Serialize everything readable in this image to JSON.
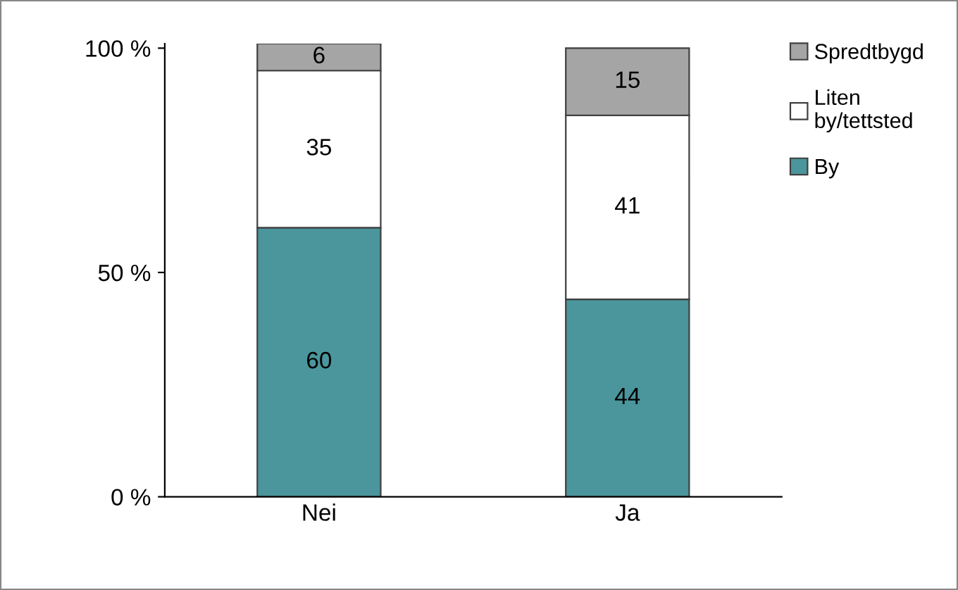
{
  "chart_data": {
    "type": "bar",
    "stacked": true,
    "categories": [
      "Nei",
      "Ja"
    ],
    "series": [
      {
        "name": "By",
        "color": "#4a969c",
        "values": [
          60,
          44
        ]
      },
      {
        "name": "Liten\nby/tettsted",
        "color": "#ffffff",
        "values": [
          35,
          41
        ]
      },
      {
        "name": "Spredtbygd",
        "color": "#a5a5a5",
        "values": [
          6,
          15
        ]
      }
    ],
    "data_labels": true,
    "ylim": [
      0,
      101
    ],
    "yticks": [
      {
        "value": 0,
        "label": "0 %"
      },
      {
        "value": 50,
        "label": "50 %"
      },
      {
        "value": 100,
        "label": "100 %"
      }
    ],
    "grid": false,
    "legend": "right"
  }
}
